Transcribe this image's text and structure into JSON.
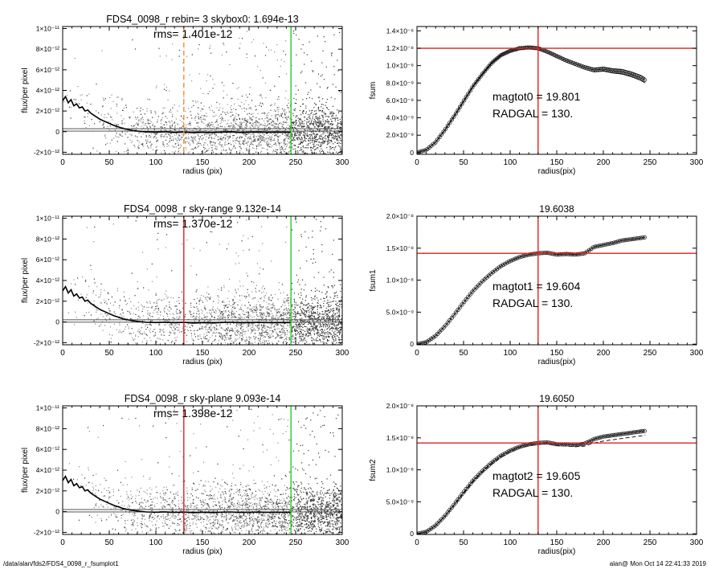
{
  "footer": {
    "left": "/data/alan/fds2/FDS4_0098_r_fsumplot1",
    "right": "alan@  Mon Oct 14 22:41:33 2019"
  },
  "colors": {
    "points": "#8a8a8a",
    "points_dark": "#333333",
    "profile": "#000000",
    "red": "#e02020",
    "green": "#22cc22",
    "orange": "#f28c28"
  },
  "chart_data": [
    {
      "id": "left1",
      "type": "scatter",
      "title": "FDS4_0098_r rebin= 3    skybox0:  1.694e-13",
      "rms_label": "rms= 1.401e-12",
      "xlabel": "radius (pix)",
      "ylabel": "flux/per pixel",
      "xlim": [
        0,
        300
      ],
      "ylim": [
        -2.2e-12,
        1.02e-11
      ],
      "xticks": [
        0,
        50,
        100,
        150,
        200,
        250,
        300
      ],
      "xtick_labels": [
        "0",
        "50",
        "100",
        "150",
        "200",
        "250",
        "300"
      ],
      "yticks": [
        -2e-12,
        0,
        2e-12,
        4e-12,
        6e-12,
        8e-12,
        1e-11
      ],
      "ytick_labels": [
        "-2×10⁻¹²",
        "0",
        "2×10⁻¹²",
        "4×10⁻¹²",
        "6×10⁻¹²",
        "8×10⁻¹²",
        "1×10⁻¹¹"
      ],
      "vlines": [
        {
          "x": 130,
          "color": "orange",
          "dashed": true
        },
        {
          "x": 245,
          "color": "green",
          "dashed": false
        }
      ],
      "profile": {
        "x": [
          0,
          3,
          6,
          9,
          12,
          15,
          18,
          21,
          24,
          27,
          30,
          35,
          40,
          45,
          50,
          55,
          60,
          65,
          70,
          75,
          80,
          85,
          90,
          100,
          110,
          120,
          130,
          140,
          150,
          160,
          170,
          180,
          190,
          200,
          210,
          220,
          230,
          245
        ],
        "y": [
          3e-12,
          3.4e-12,
          2.8e-12,
          3.1e-12,
          2.5e-12,
          2.7e-12,
          2.3e-12,
          2.4e-12,
          2e-12,
          2.1e-12,
          1.8e-12,
          1.5e-12,
          1.2e-12,
          1e-12,
          8e-13,
          6e-13,
          4.5e-13,
          3e-13,
          2e-13,
          1.2e-13,
          6e-14,
          1e-14,
          -3e-14,
          -5e-14,
          -2e-14,
          -8e-14,
          -4e-14,
          -1e-13,
          -6e-14,
          -9e-14,
          -5e-14,
          -3e-14,
          -8e-14,
          -6e-14,
          -4e-14,
          -7e-14,
          -5e-14,
          -6e-14
        ]
      },
      "baseline": 1.694e-13
    },
    {
      "id": "left2",
      "type": "scatter",
      "title": "FDS4_0098_r sky-range  9.132e-14",
      "rms_label": "rms= 1.370e-12",
      "xlabel": "radius (pix)",
      "ylabel": "flux/per pixel",
      "xlim": [
        0,
        300
      ],
      "ylim": [
        -2.2e-12,
        1.02e-11
      ],
      "xticks": [
        0,
        50,
        100,
        150,
        200,
        250,
        300
      ],
      "xtick_labels": [
        "0",
        "50",
        "100",
        "150",
        "200",
        "250",
        "300"
      ],
      "yticks": [
        -2e-12,
        0,
        2e-12,
        4e-12,
        6e-12,
        8e-12,
        1e-11
      ],
      "ytick_labels": [
        "-2×10⁻¹²",
        "0",
        "2×10⁻¹²",
        "4×10⁻¹²",
        "6×10⁻¹²",
        "8×10⁻¹²",
        "1×10⁻¹¹"
      ],
      "vlines": [
        {
          "x": 130,
          "color": "red",
          "dashed": false
        },
        {
          "x": 245,
          "color": "green",
          "dashed": false
        }
      ],
      "profile": {
        "x": [
          0,
          3,
          6,
          9,
          12,
          15,
          18,
          21,
          24,
          27,
          30,
          35,
          40,
          45,
          50,
          55,
          60,
          65,
          70,
          75,
          80,
          85,
          90,
          100,
          110,
          120,
          130,
          140,
          150,
          160,
          170,
          180,
          190,
          200,
          210,
          220,
          230,
          245
        ],
        "y": [
          3e-12,
          3.4e-12,
          2.8e-12,
          3.1e-12,
          2.5e-12,
          2.7e-12,
          2.3e-12,
          2.4e-12,
          2e-12,
          2.1e-12,
          1.8e-12,
          1.5e-12,
          1.2e-12,
          1e-12,
          8e-13,
          6e-13,
          4.5e-13,
          3e-13,
          2e-13,
          1.2e-13,
          6e-14,
          1e-14,
          -3e-14,
          -5e-14,
          -2e-14,
          -8e-14,
          -4e-14,
          -1e-13,
          -6e-14,
          -9e-14,
          -5e-14,
          -3e-14,
          -8e-14,
          -6e-14,
          -4e-14,
          -7e-14,
          -5e-14,
          -6e-14
        ]
      },
      "baseline": 9.132e-14
    },
    {
      "id": "left3",
      "type": "scatter",
      "title": "FDS4_0098_r sky-plane  9.093e-14",
      "rms_label": "rms= 1.398e-12",
      "xlabel": "radius (pix)",
      "ylabel": "flux/per pixel",
      "xlim": [
        0,
        300
      ],
      "ylim": [
        -2.2e-12,
        1.02e-11
      ],
      "xticks": [
        0,
        50,
        100,
        150,
        200,
        250,
        300
      ],
      "xtick_labels": [
        "0",
        "50",
        "100",
        "150",
        "200",
        "250",
        "300"
      ],
      "yticks": [
        -2e-12,
        0,
        2e-12,
        4e-12,
        6e-12,
        8e-12,
        1e-11
      ],
      "ytick_labels": [
        "-2×10⁻¹²",
        "0",
        "2×10⁻¹²",
        "4×10⁻¹²",
        "6×10⁻¹²",
        "8×10⁻¹²",
        "1×10⁻¹¹"
      ],
      "vlines": [
        {
          "x": 130,
          "color": "red",
          "dashed": false
        },
        {
          "x": 245,
          "color": "green",
          "dashed": false
        }
      ],
      "profile": {
        "x": [
          0,
          3,
          6,
          9,
          12,
          15,
          18,
          21,
          24,
          27,
          30,
          35,
          40,
          45,
          50,
          55,
          60,
          65,
          70,
          75,
          80,
          85,
          90,
          100,
          110,
          120,
          130,
          140,
          150,
          160,
          170,
          180,
          190,
          200,
          210,
          220,
          230,
          245
        ],
        "y": [
          3e-12,
          3.4e-12,
          2.8e-12,
          3.1e-12,
          2.5e-12,
          2.7e-12,
          2.3e-12,
          2.4e-12,
          2e-12,
          2.1e-12,
          1.8e-12,
          1.5e-12,
          1.2e-12,
          1e-12,
          8e-13,
          6e-13,
          4.5e-13,
          3e-13,
          2e-13,
          1.2e-13,
          6e-14,
          1e-14,
          -3e-14,
          -5e-14,
          -2e-14,
          -8e-14,
          -4e-14,
          -1e-13,
          -6e-14,
          -9e-14,
          -5e-14,
          -3e-14,
          -8e-14,
          -6e-14,
          -4e-14,
          -7e-14,
          -5e-14,
          -6e-14
        ]
      },
      "baseline": 9.093e-14
    },
    {
      "id": "right1",
      "type": "line",
      "title": "",
      "xlabel": "radius(pix)",
      "ylabel": "fsum",
      "xlim": [
        0,
        300
      ],
      "ylim": [
        -2e-10,
        1.45e-08
      ],
      "xticks": [
        0,
        50,
        100,
        150,
        200,
        250,
        300
      ],
      "xtick_labels": [
        "0",
        "50",
        "100",
        "150",
        "200",
        "250",
        "300"
      ],
      "yticks": [
        0,
        2e-09,
        4e-09,
        6e-09,
        8e-09,
        1e-08,
        1.2e-08,
        1.4e-08
      ],
      "ytick_labels": [
        "0",
        "2.0×10⁻⁹",
        "4.0×10⁻⁹",
        "6.0×10⁻⁹",
        "8.0×10⁻⁹",
        "1.0×10⁻⁸",
        "1.2×10⁻⁸",
        "1.4×10⁻⁸"
      ],
      "vline": 130,
      "hline": 1.2e-08,
      "annotation": [
        "magtot0 =  19.801",
        "RADGAL =    130."
      ],
      "series": {
        "x": [
          0,
          10,
          20,
          30,
          40,
          50,
          60,
          70,
          80,
          90,
          100,
          110,
          120,
          130,
          140,
          150,
          160,
          170,
          180,
          190,
          200,
          210,
          220,
          230,
          240,
          245
        ],
        "y": [
          0,
          3e-10,
          1.2e-09,
          2.6e-09,
          4.2e-09,
          5.9e-09,
          7.6e-09,
          9e-09,
          1.03e-08,
          1.12e-08,
          1.17e-08,
          1.2e-08,
          1.21e-08,
          1.2e-08,
          1.16e-08,
          1.11e-08,
          1.06e-08,
          1.02e-08,
          9.8e-09,
          9.5e-09,
          9.6e-09,
          9.4e-09,
          9.3e-09,
          9e-09,
          8.6e-09,
          8.3e-09
        ]
      },
      "envelope": 3e-10
    },
    {
      "id": "right2",
      "type": "line",
      "title": "19.6038",
      "xlabel": "radius(pix)",
      "ylabel": "fsum1",
      "xlim": [
        0,
        300
      ],
      "ylim": [
        -1e-10,
        2e-08
      ],
      "xticks": [
        0,
        50,
        100,
        150,
        200,
        250,
        300
      ],
      "xtick_labels": [
        "0",
        "50",
        "100",
        "150",
        "200",
        "250",
        "300"
      ],
      "yticks": [
        0,
        5e-09,
        1e-08,
        1.5e-08,
        2e-08
      ],
      "ytick_labels": [
        "0",
        "5.0×10⁻⁹",
        "1.0×10⁻⁸",
        "1.5×10⁻⁸",
        "2.0×10⁻⁸"
      ],
      "vline": 130,
      "hline": 1.42e-08,
      "annotation": [
        "magtot1 =  19.604",
        "RADGAL =    130."
      ],
      "series": {
        "x": [
          0,
          10,
          20,
          30,
          40,
          50,
          60,
          70,
          80,
          90,
          100,
          110,
          120,
          130,
          140,
          150,
          160,
          170,
          180,
          190,
          200,
          210,
          220,
          230,
          240,
          245
        ],
        "y": [
          0,
          3e-10,
          1.3e-09,
          2.8e-09,
          4.6e-09,
          6.5e-09,
          8.3e-09,
          9.8e-09,
          1.11e-08,
          1.22e-08,
          1.3e-08,
          1.36e-08,
          1.4e-08,
          1.42e-08,
          1.43e-08,
          1.4e-08,
          1.41e-08,
          1.4e-08,
          1.42e-08,
          1.52e-08,
          1.55e-08,
          1.58e-08,
          1.62e-08,
          1.64e-08,
          1.66e-08,
          1.67e-08
        ]
      }
    },
    {
      "id": "right3",
      "type": "line",
      "title": "19.6050",
      "xlabel": "radius(pix)",
      "ylabel": "fsum2",
      "xlim": [
        0,
        300
      ],
      "ylim": [
        -1e-10,
        2e-08
      ],
      "xticks": [
        0,
        50,
        100,
        150,
        200,
        250,
        300
      ],
      "xtick_labels": [
        "0",
        "50",
        "100",
        "150",
        "200",
        "250",
        "300"
      ],
      "yticks": [
        0,
        5e-09,
        1e-08,
        1.5e-08,
        2e-08
      ],
      "ytick_labels": [
        "0",
        "5.0×10⁻⁹",
        "1.0×10⁻⁸",
        "1.5×10⁻⁸",
        "2.0×10⁻⁸"
      ],
      "vline": 130,
      "hline": 1.42e-08,
      "annotation": [
        "magtot2 =  19.605",
        "RADGAL =    130."
      ],
      "series": {
        "x": [
          0,
          10,
          20,
          30,
          40,
          50,
          60,
          70,
          80,
          90,
          100,
          110,
          120,
          130,
          140,
          150,
          160,
          170,
          180,
          190,
          200,
          210,
          220,
          230,
          240,
          245
        ],
        "y": [
          0,
          3e-10,
          1.3e-09,
          2.8e-09,
          4.6e-09,
          6.5e-09,
          8.3e-09,
          9.8e-09,
          1.11e-08,
          1.22e-08,
          1.3e-08,
          1.36e-08,
          1.4e-08,
          1.42e-08,
          1.43e-08,
          1.4e-08,
          1.4e-08,
          1.39e-08,
          1.41e-08,
          1.48e-08,
          1.52e-08,
          1.54e-08,
          1.56e-08,
          1.58e-08,
          1.6e-08,
          1.61e-08
        ]
      },
      "dashed_series": {
        "x": [
          0,
          10,
          20,
          30,
          40,
          50,
          60,
          70,
          80,
          90,
          100,
          110,
          120,
          130,
          140,
          150,
          160,
          170,
          180,
          190,
          200,
          210,
          220,
          230,
          240,
          245
        ],
        "y": [
          0,
          2.8e-10,
          1.25e-09,
          2.7e-09,
          4.5e-09,
          6.3e-09,
          8.1e-09,
          9.6e-09,
          1.09e-08,
          1.2e-08,
          1.28e-08,
          1.34e-08,
          1.38e-08,
          1.4e-08,
          1.41e-08,
          1.38e-08,
          1.37e-08,
          1.36e-08,
          1.37e-08,
          1.42e-08,
          1.45e-08,
          1.47e-08,
          1.49e-08,
          1.51e-08,
          1.53e-08,
          1.54e-08
        ]
      }
    }
  ]
}
